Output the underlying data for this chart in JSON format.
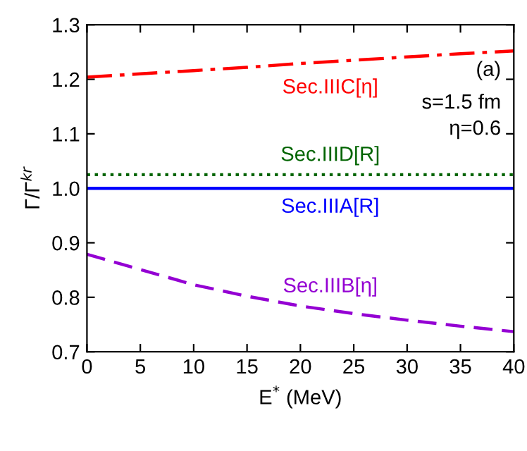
{
  "chart_data": {
    "type": "line",
    "xlabel": "E$^{*}$ (MeV)",
    "ylabel": "Γ/Γ$^{kr}$",
    "x": [
      0,
      5,
      10,
      15,
      20,
      25,
      30,
      35,
      40
    ],
    "series": [
      {
        "name": "Sec.IIIC[η]",
        "color": "#ff0000",
        "line_style": "dashdot",
        "values": [
          1.204,
          1.21,
          1.216,
          1.222,
          1.229,
          1.235,
          1.241,
          1.247,
          1.252
        ]
      },
      {
        "name": "Sec.IIID[R]",
        "color": "#006400",
        "line_style": "dotted",
        "values": [
          1.025,
          1.025,
          1.025,
          1.025,
          1.025,
          1.025,
          1.025,
          1.025,
          1.025
        ]
      },
      {
        "name": "Sec.IIIA[R]",
        "color": "#0000ff",
        "line_style": "solid",
        "values": [
          1.0,
          1.0,
          1.0,
          1.0,
          1.0,
          1.0,
          1.0,
          1.0,
          1.0
        ]
      },
      {
        "name": "Sec.IIIB[η]",
        "color": "#9400d3",
        "line_style": "dashed",
        "values": [
          0.879,
          0.851,
          0.823,
          0.802,
          0.784,
          0.77,
          0.758,
          0.747,
          0.737
        ]
      }
    ],
    "xlim": [
      0,
      40
    ],
    "xticks": [
      0,
      5,
      10,
      15,
      20,
      25,
      30,
      35,
      40
    ],
    "ylim": [
      0.7,
      1.3
    ],
    "yticks": [
      0.7,
      0.8,
      0.9,
      {
        "value": 1,
        "label": "1.0"
      },
      1.1,
      1.2,
      1.3
    ],
    "annotations": [
      "(a)",
      "s=1.5 fm",
      "η=0.6"
    ],
    "grid": false,
    "legend": false,
    "marker": "none"
  }
}
